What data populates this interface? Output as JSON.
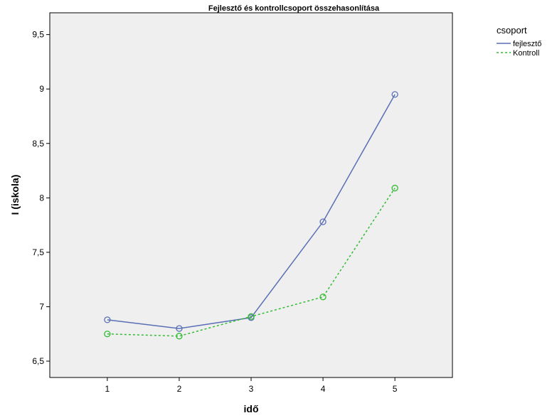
{
  "chart_data": {
    "type": "line",
    "title": "Fejlesztő és kontrollcsoport összehasonlítása",
    "xlabel": "idő",
    "ylabel": "I (iskola)",
    "categories": [
      "1",
      "2",
      "3",
      "4",
      "5"
    ],
    "x": [
      1,
      2,
      3,
      4,
      5
    ],
    "xlim": [
      0.2,
      5.8
    ],
    "ylim": [
      6.35,
      9.7
    ],
    "yticks": [
      6.5,
      7,
      7.5,
      8,
      8.5,
      9,
      9.5
    ],
    "ytick_labels": [
      "6,5",
      "7",
      "7,5",
      "8",
      "8,5",
      "9",
      "9,5"
    ],
    "grid": false,
    "legend": {
      "title": "csoport",
      "position": "right"
    },
    "series": [
      {
        "name": "fejlesztő",
        "values": [
          6.88,
          6.8,
          6.9,
          7.78,
          8.95
        ],
        "color": "#5a6fb5",
        "dash": "solid"
      },
      {
        "name": "Kontroll",
        "values": [
          6.75,
          6.73,
          6.91,
          7.09,
          8.09
        ],
        "color": "#33bb33",
        "dash": "dashed"
      }
    ],
    "plot_background": "#efefef"
  }
}
